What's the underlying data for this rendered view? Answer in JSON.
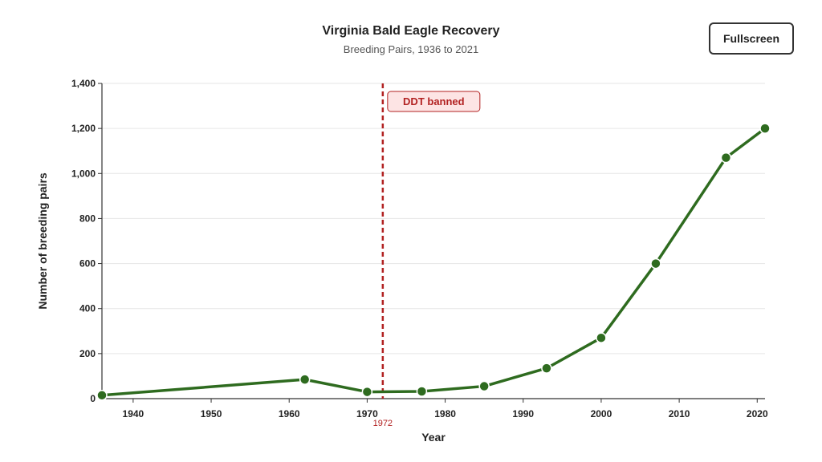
{
  "header": {
    "title": "Virginia Bald Eagle Recovery",
    "subtitle": "Breeding Pairs, 1936 to 2021"
  },
  "toolbar": {
    "fullscreen_label": "Fullscreen"
  },
  "chart_data": {
    "type": "line",
    "xlabel": "Year",
    "ylabel": "Number of breeding pairs",
    "xlim": [
      1936,
      2021
    ],
    "ylim": [
      0,
      1400
    ],
    "x_ticks": [
      1940,
      1950,
      1960,
      1970,
      1980,
      1990,
      2000,
      2010,
      2020
    ],
    "y_ticks": [
      0,
      200,
      400,
      600,
      800,
      1000,
      1200,
      1400
    ],
    "y_tick_labels": [
      "0",
      "200",
      "400",
      "600",
      "800",
      "1,000",
      "1,200",
      "1,400"
    ],
    "grid": true,
    "series": [
      {
        "x": [
          1936,
          1962,
          1970,
          1977,
          1985,
          1993,
          2000,
          2007,
          2016,
          2021
        ],
        "y": [
          15,
          85,
          30,
          32,
          55,
          135,
          270,
          600,
          1070,
          1200
        ]
      }
    ],
    "annotations": [
      {
        "x": 1972,
        "axis_label": "1972",
        "text": "DDT banned"
      }
    ],
    "colors": {
      "line": "#2e6b1f",
      "marker": "#2e6b1f",
      "annotation": "#b22222",
      "annotation_fill": "#fde4e4",
      "grid": "#e6e6e6",
      "axis": "#333333"
    }
  }
}
